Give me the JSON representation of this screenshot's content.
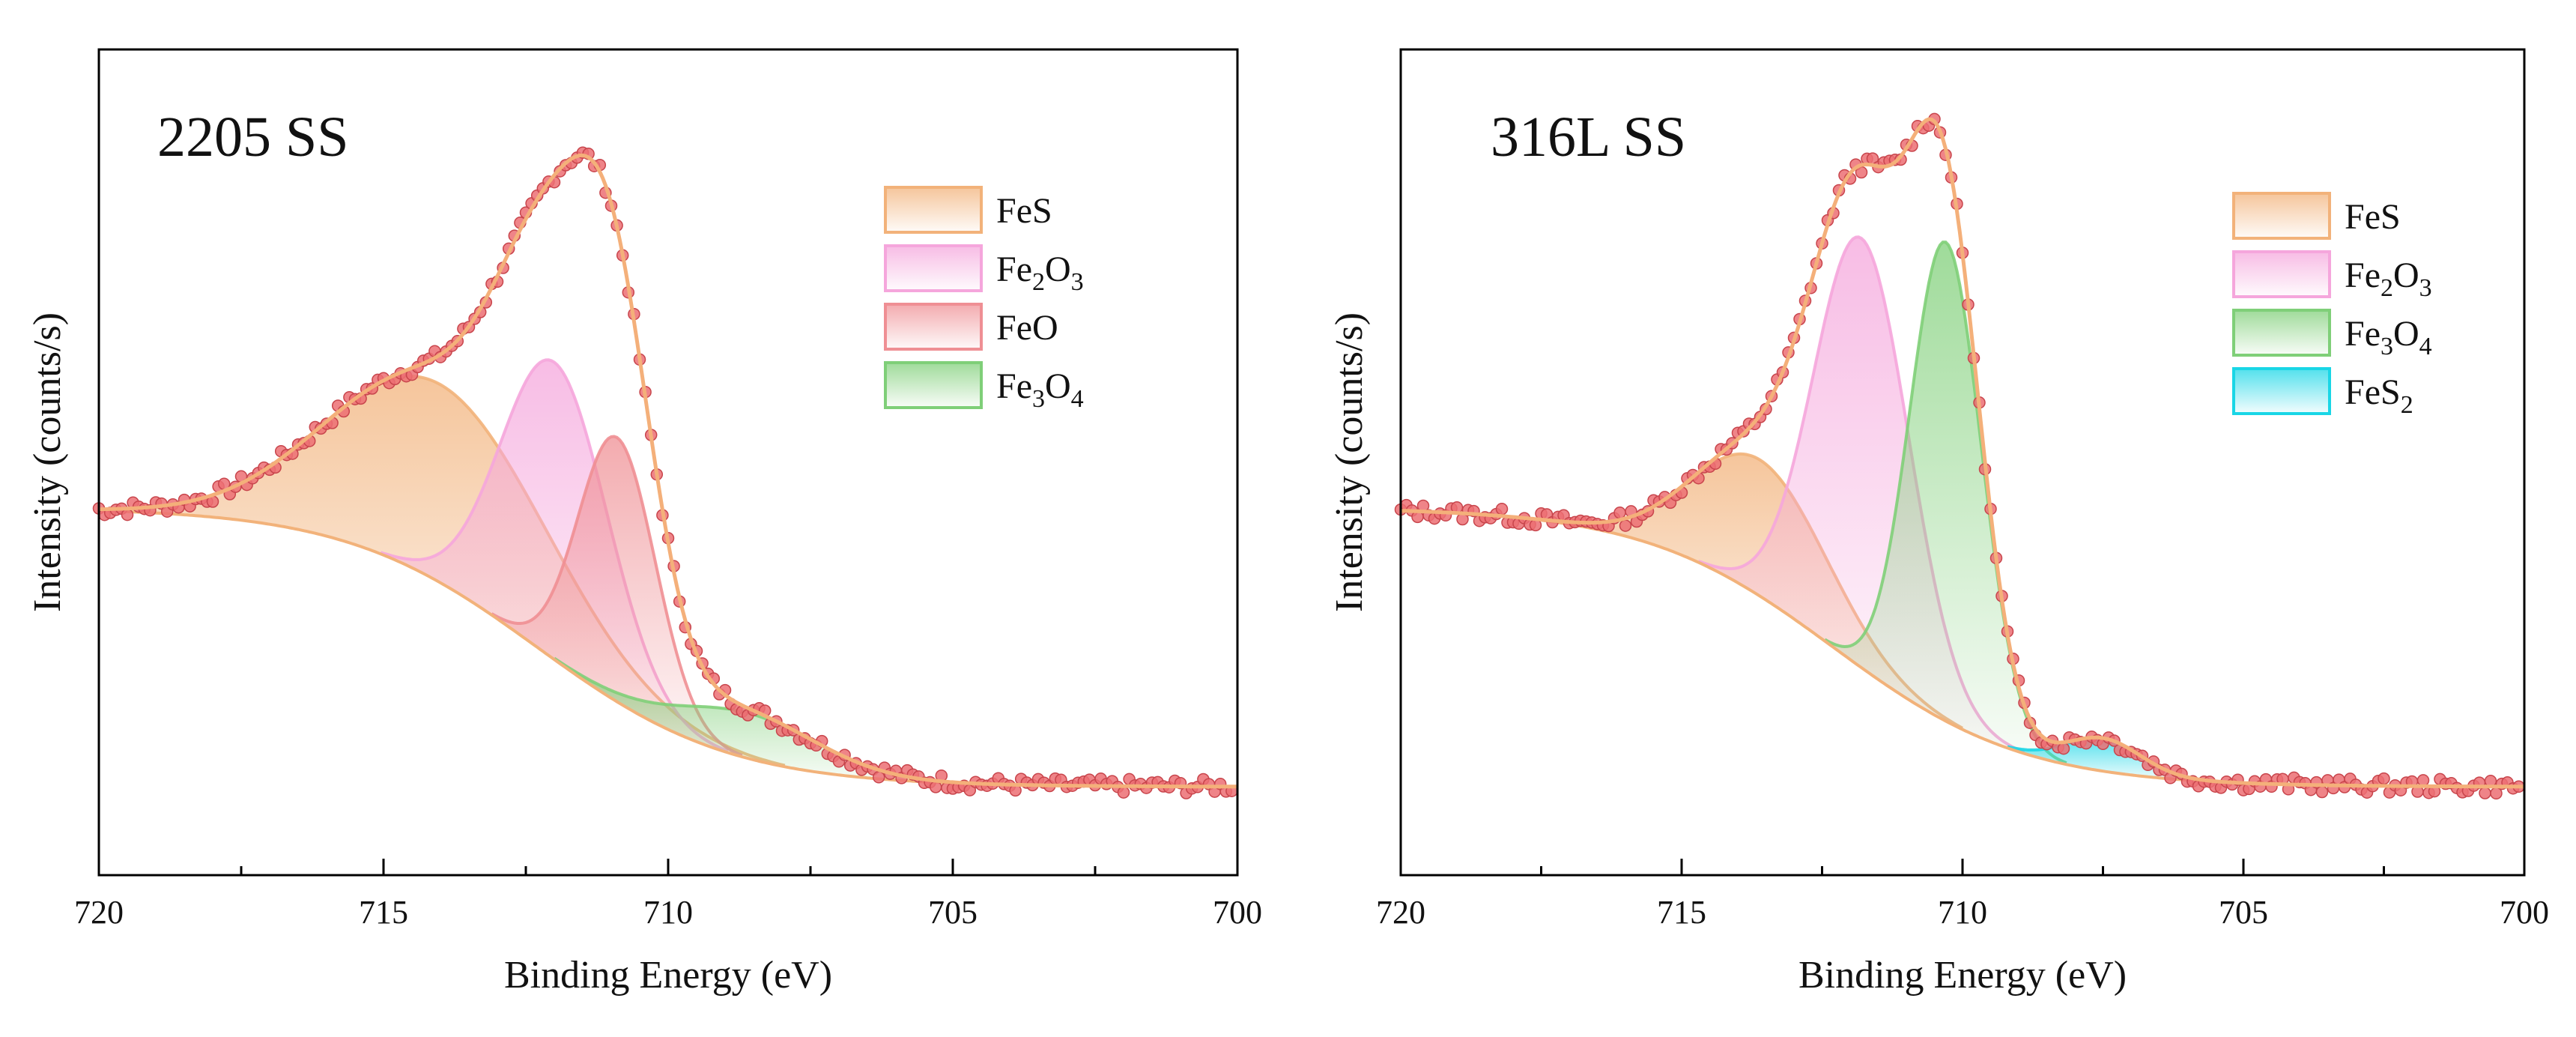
{
  "colors": {
    "FeS": "#f2b27a",
    "Fe2O3": "#f5a6dc",
    "FeO": "#ef8f94",
    "Fe3O4": "#7fcf78",
    "FeS2": "#19d6e6",
    "marker": "#ec6f73",
    "markerEdge": "#c8454c",
    "envelope": "#f4b07a",
    "background": "#f2b27a"
  },
  "chart_data": [
    {
      "type": "line",
      "title": "2205 SS",
      "xlabel": "Binding Energy (eV)",
      "ylabel": "Intensity (counts/s)",
      "xlim": [
        720,
        700
      ],
      "ylim": [
        0,
        1
      ],
      "x_ticks": [
        "720",
        "715",
        "710",
        "705",
        "700"
      ],
      "grid": false,
      "legend_position": "top-right",
      "legend": [
        {
          "name": "FeS",
          "key": "FeS",
          "base": "FeS",
          "sub1": "",
          "mid": "",
          "sub2": ""
        },
        {
          "name": "Fe2O3",
          "key": "Fe2O3",
          "base": "Fe",
          "sub1": "2",
          "mid": "O",
          "sub2": "3"
        },
        {
          "name": "FeO",
          "key": "FeO",
          "base": "FeO",
          "sub1": "",
          "mid": "",
          "sub2": ""
        },
        {
          "name": "Fe3O4",
          "key": "Fe3O4",
          "base": "Fe",
          "sub1": "3",
          "mid": "O",
          "sub2": "4"
        }
      ],
      "background": {
        "left": 0.445,
        "right": 0.107,
        "center": 712.3,
        "width": 1.7
      },
      "peaks": [
        {
          "name": "FeS",
          "center": 714.0,
          "amplitude": 0.24,
          "fwhm": 4.5
        },
        {
          "name": "Fe2O3",
          "center": 712.0,
          "amplitude": 0.36,
          "fwhm": 2.2
        },
        {
          "name": "FeO",
          "center": 710.9,
          "amplitude": 0.32,
          "fwhm": 1.6
        },
        {
          "name": "Fe3O4",
          "center": 708.6,
          "amplitude": 0.055,
          "fwhm": 3.0
        }
      ],
      "noise_seed": 7
    },
    {
      "type": "line",
      "title": "316L SS",
      "xlabel": "Binding Energy (eV)",
      "ylabel": "Intensity (counts/s)",
      "xlim": [
        720,
        700
      ],
      "ylim": [
        0,
        1
      ],
      "x_ticks": [
        "720",
        "715",
        "710",
        "705",
        "700"
      ],
      "grid": false,
      "legend_position": "top-right",
      "legend": [
        {
          "name": "FeS",
          "key": "FeS",
          "base": "FeS",
          "sub1": "",
          "mid": "",
          "sub2": ""
        },
        {
          "name": "Fe2O3",
          "key": "Fe2O3",
          "base": "Fe",
          "sub1": "2",
          "mid": "O",
          "sub2": "3"
        },
        {
          "name": "Fe3O4",
          "key": "Fe3O4",
          "base": "Fe",
          "sub1": "3",
          "mid": "O",
          "sub2": "4"
        },
        {
          "name": "FeS2",
          "key": "FeS2",
          "base": "FeS",
          "sub1": "2",
          "mid": "",
          "sub2": ""
        }
      ],
      "background": {
        "left": 0.445,
        "right": 0.107,
        "center": 712.3,
        "width": 1.7
      },
      "peaks": [
        {
          "name": "FeS",
          "center": 713.6,
          "amplitude": 0.165,
          "fwhm": 2.8
        },
        {
          "name": "Fe2O3",
          "center": 711.8,
          "amplitude": 0.52,
          "fwhm": 2.0
        },
        {
          "name": "Fe3O4",
          "center": 710.3,
          "amplitude": 0.58,
          "fwhm": 1.5
        },
        {
          "name": "FeS2",
          "center": 707.5,
          "amplitude": 0.04,
          "fwhm": 1.6
        }
      ],
      "noise_seed": 13
    }
  ]
}
